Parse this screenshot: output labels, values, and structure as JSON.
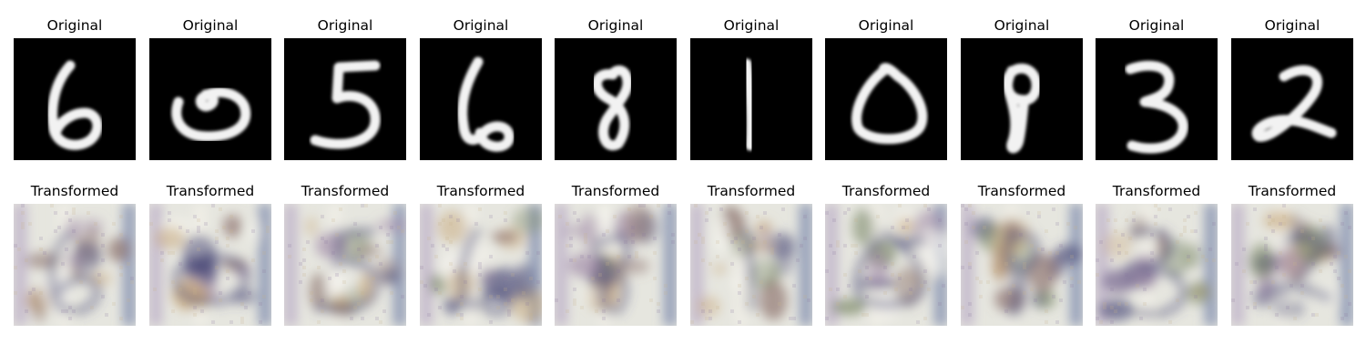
{
  "row_titles": {
    "original": "Original",
    "transformed": "Transformed"
  },
  "panels": [
    {
      "digit": "6",
      "original_label": "Original",
      "transformed_label": "Transformed"
    },
    {
      "digit": "0",
      "original_label": "Original",
      "transformed_label": "Transformed"
    },
    {
      "digit": "5",
      "original_label": "Original",
      "transformed_label": "Transformed"
    },
    {
      "digit": "6",
      "original_label": "Original",
      "transformed_label": "Transformed"
    },
    {
      "digit": "8",
      "original_label": "Original",
      "transformed_label": "Transformed"
    },
    {
      "digit": "1",
      "original_label": "Original",
      "transformed_label": "Transformed"
    },
    {
      "digit": "0",
      "original_label": "Original",
      "transformed_label": "Transformed"
    },
    {
      "digit": "8",
      "original_label": "Original",
      "transformed_label": "Transformed"
    },
    {
      "digit": "3",
      "original_label": "Original",
      "transformed_label": "Transformed"
    },
    {
      "digit": "2",
      "original_label": "Original",
      "transformed_label": "Transformed"
    }
  ],
  "colors": {
    "original_background": "#000000",
    "digit_stroke": "#f2f2f2",
    "transformed_base": "#e6e6df",
    "transformed_dark": "#4a4a78",
    "transformed_warm": "#c8a87a"
  }
}
